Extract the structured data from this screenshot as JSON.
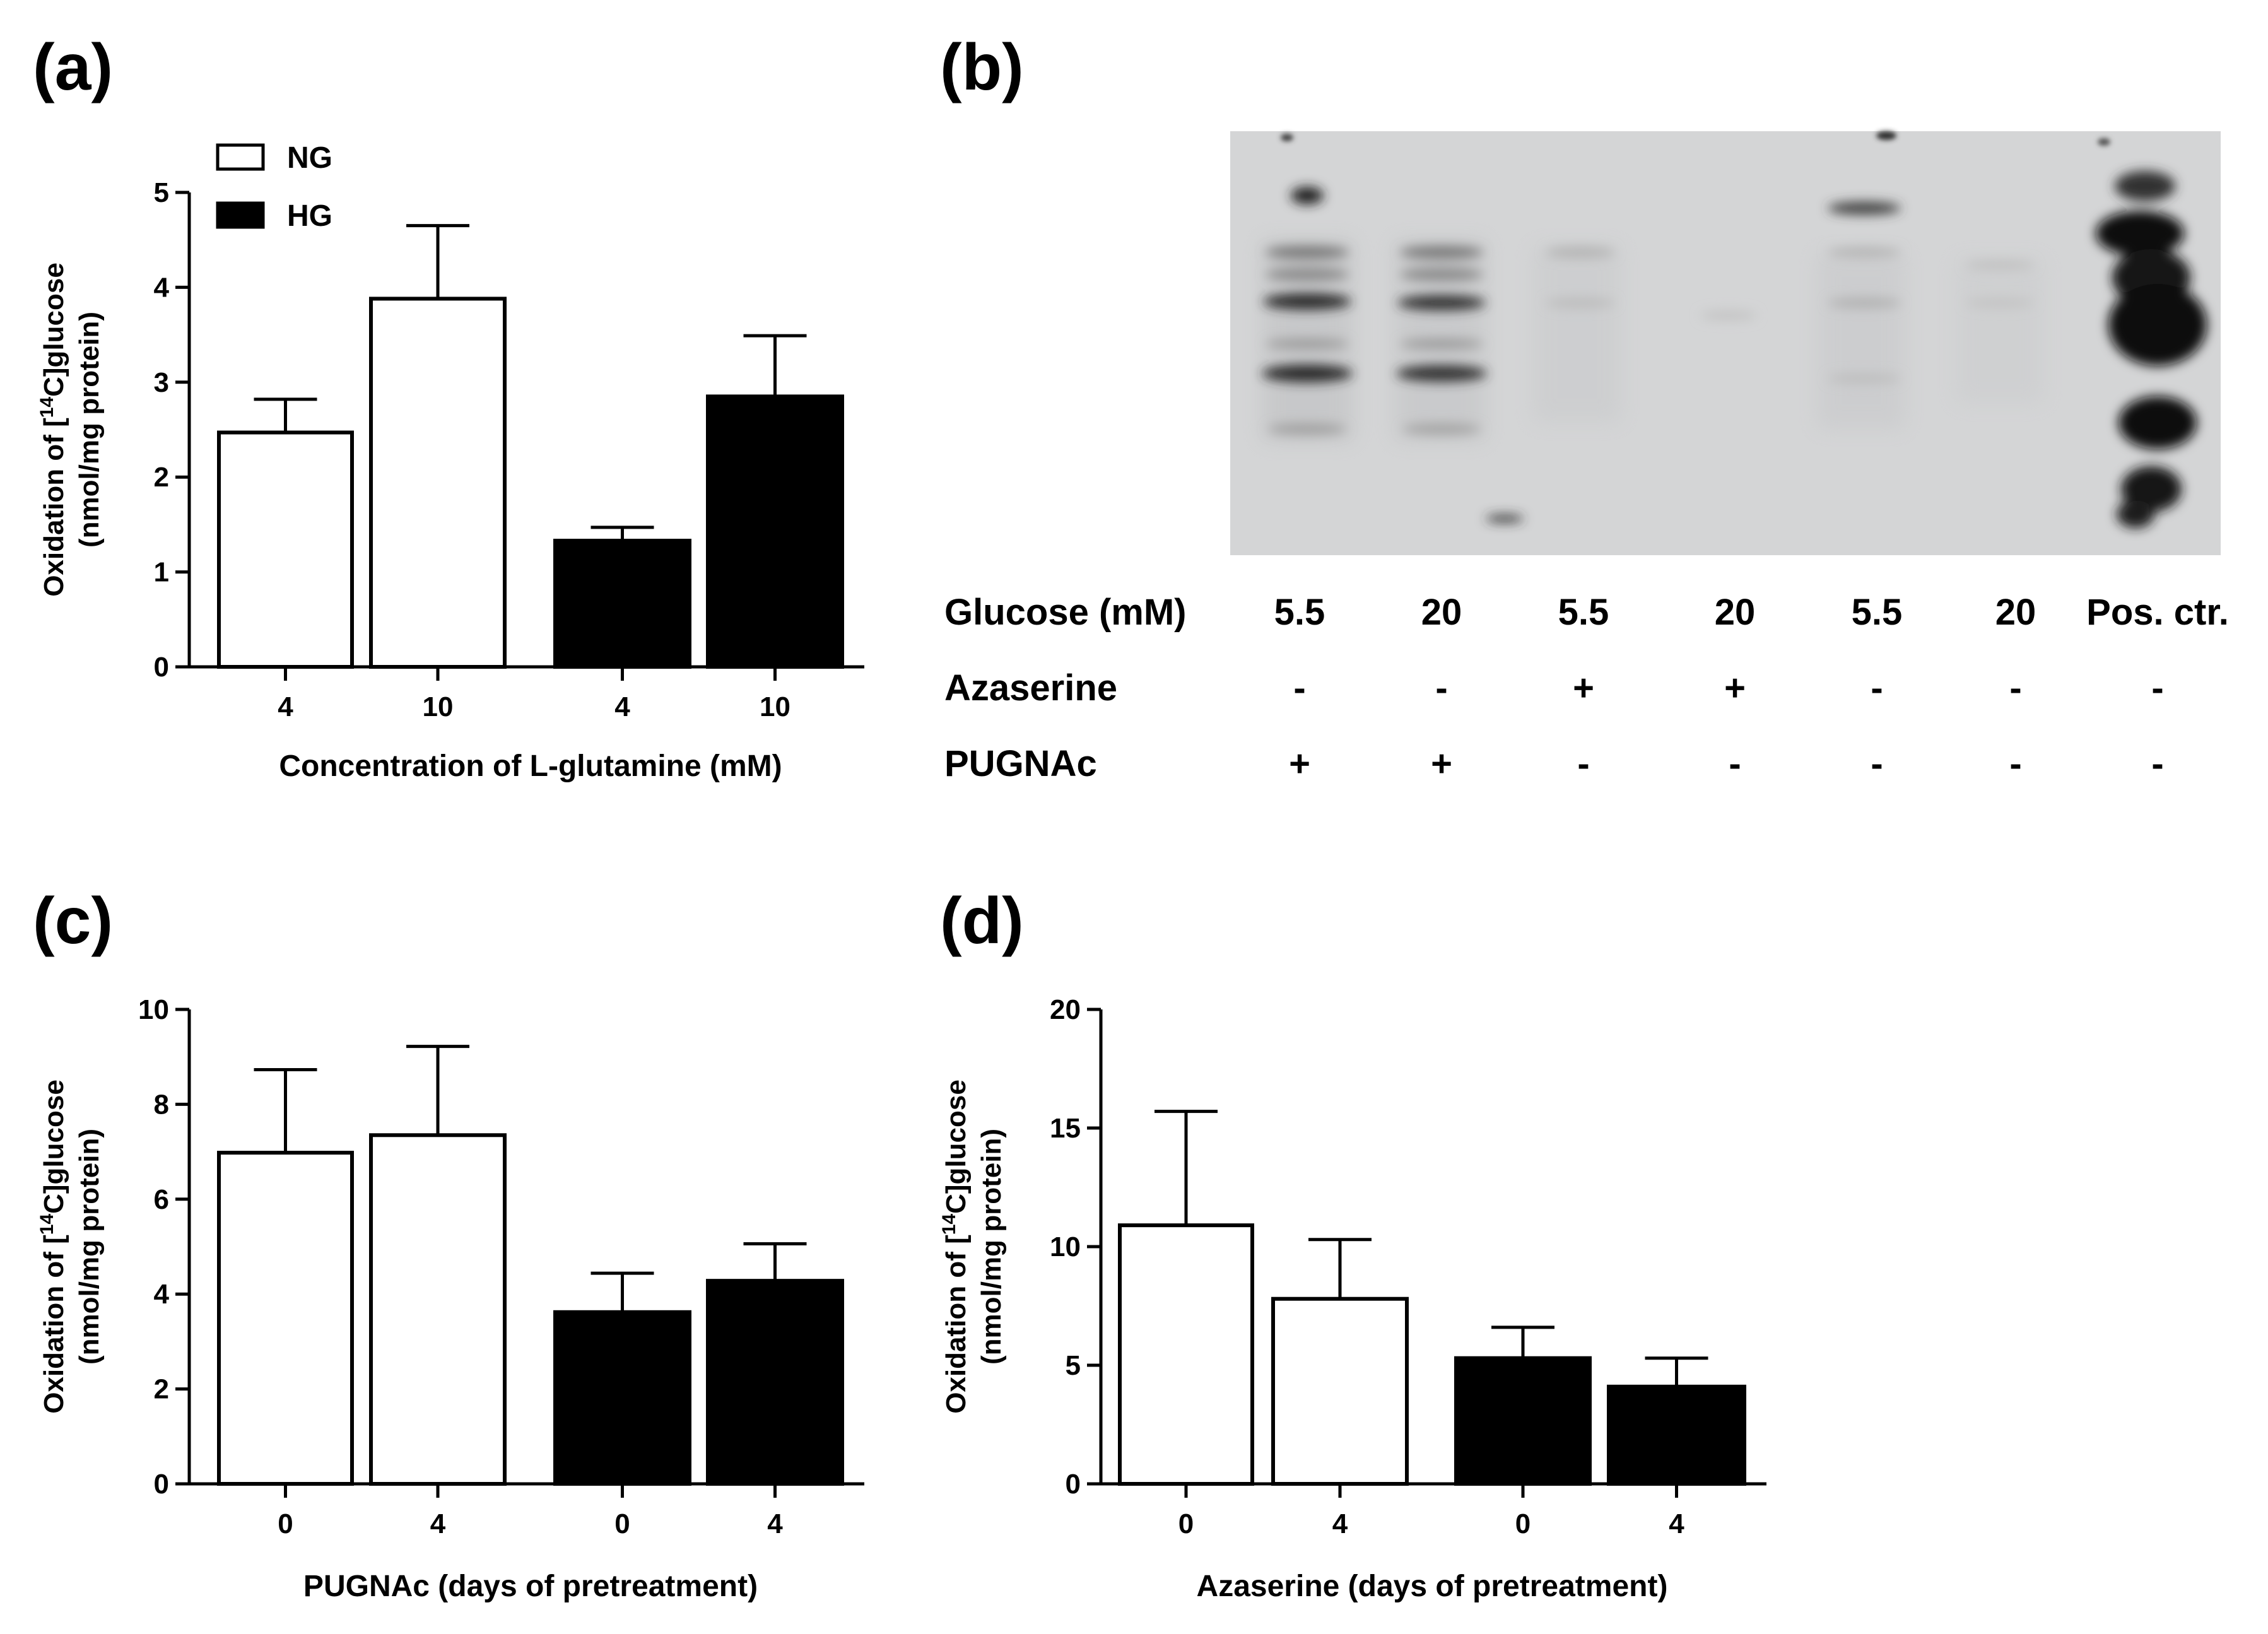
{
  "chart_data": [
    {
      "panel": "(a)",
      "type": "bar",
      "categories": [
        "4",
        "10",
        "4",
        "10"
      ],
      "series": [
        {
          "name": "NG",
          "color": "#ffffff",
          "values": [
            2.47,
            3.88,
            null,
            null
          ],
          "errors": [
            0.35,
            0.77,
            null,
            null
          ]
        },
        {
          "name": "HG",
          "color": "#000000",
          "values": [
            null,
            null,
            1.33,
            2.85
          ],
          "errors": [
            null,
            null,
            0.14,
            0.64
          ]
        }
      ],
      "xlabel": "Concentration of L-glutamine (mM)",
      "ylabel_line1": "Oxidation of [",
      "ylabel_sup": "14",
      "ylabel_line1b": "C]glucose",
      "ylabel_line2": "(nmol/mg protein)",
      "ylim": [
        0,
        5
      ],
      "yticks": [
        "0",
        "1",
        "2",
        "3",
        "4",
        "5"
      ],
      "legend": "top-left"
    },
    {
      "panel": "(c)",
      "type": "bar",
      "categories": [
        "0",
        "4",
        "0",
        "4"
      ],
      "series": [
        {
          "name": "NG",
          "color": "#ffffff",
          "values": [
            6.98,
            7.35,
            null,
            null
          ],
          "errors": [
            1.75,
            1.87,
            null,
            null
          ]
        },
        {
          "name": "HG",
          "color": "#000000",
          "values": [
            null,
            null,
            3.62,
            4.28
          ],
          "errors": [
            null,
            null,
            0.82,
            0.78
          ]
        }
      ],
      "xlabel": "PUGNAc (days of pretreatment)",
      "ylabel_line1": "Oxidation of [",
      "ylabel_sup": "14",
      "ylabel_line1b": "C]glucose",
      "ylabel_line2": "(nmol/mg protein)",
      "ylim": [
        0,
        10
      ],
      "yticks": [
        "0",
        "2",
        "4",
        "6",
        "8",
        "10"
      ]
    },
    {
      "panel": "(d)",
      "type": "bar",
      "categories": [
        "0",
        "4",
        "0",
        "4"
      ],
      "series": [
        {
          "name": "NG",
          "color": "#ffffff",
          "values": [
            10.9,
            7.8,
            null,
            null
          ],
          "errors": [
            4.8,
            2.5,
            null,
            null
          ]
        },
        {
          "name": "HG",
          "color": "#000000",
          "values": [
            null,
            null,
            5.3,
            4.1
          ],
          "errors": [
            null,
            null,
            1.3,
            1.2
          ]
        }
      ],
      "xlabel": "Azaserine (days of pretreatment)",
      "ylabel_line1": "Oxidation of [",
      "ylabel_sup": "14",
      "ylabel_line1b": "C]glucose",
      "ylabel_line2": "(nmol/mg protein)",
      "ylim": [
        0,
        20
      ],
      "yticks": [
        "0",
        "5",
        "10",
        "15",
        "20"
      ]
    }
  ],
  "blot": {
    "panel": "(b)",
    "rows": [
      {
        "label": "Glucose (mM)",
        "values": [
          "5.5",
          "20",
          "5.5",
          "20",
          "5.5",
          "20",
          "Pos. ctr."
        ]
      },
      {
        "label": "Azaserine",
        "values": [
          "-",
          "-",
          "+",
          "+",
          "-",
          "-",
          "-"
        ]
      },
      {
        "label": "PUGNAc",
        "values": [
          "+",
          "+",
          "-",
          "-",
          "-",
          "-",
          "-"
        ]
      }
    ]
  },
  "colors": {
    "open_bar": "#ffffff",
    "filled_bar": "#000000",
    "blot_background": "#d4d5d6"
  }
}
